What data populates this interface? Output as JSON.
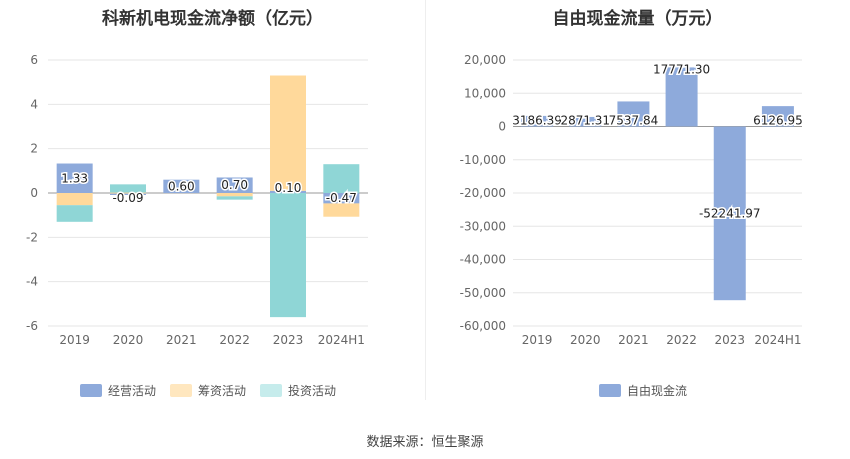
{
  "source_label": "数据来源：恒生聚源",
  "chart_data": [
    {
      "type": "bar",
      "stacked": true,
      "title": "科新机电现金流净额（亿元）",
      "categories": [
        "2019",
        "2020",
        "2021",
        "2022",
        "2023",
        "2024H1"
      ],
      "ylim": [
        -6,
        6
      ],
      "yticks": [
        -6,
        -4,
        -2,
        0,
        2,
        4,
        6
      ],
      "grid": true,
      "legend_position": "bottom",
      "series": [
        {
          "name": "经营活动",
          "color": "#8eaadb",
          "values": [
            1.33,
            -0.09,
            0.6,
            0.7,
            0.1,
            -0.47
          ]
        },
        {
          "name": "筹资活动",
          "color": "#ffd99b",
          "values": [
            -0.55,
            0.02,
            0.0,
            -0.15,
            5.2,
            -0.6
          ]
        },
        {
          "name": "投资活动",
          "color": "#8fd6d6",
          "values": [
            -0.75,
            0.37,
            0.0,
            -0.15,
            -5.6,
            1.3
          ]
        }
      ],
      "data_labels": [
        "1.33",
        "-0.09",
        "0.60",
        "0.70",
        "0.10",
        "-0.47"
      ]
    },
    {
      "type": "bar",
      "title": "自由现金流量（万元）",
      "categories": [
        "2019",
        "2020",
        "2021",
        "2022",
        "2023",
        "2024H1"
      ],
      "ylim": [
        -60000,
        20000
      ],
      "yticks": [
        -60000,
        -50000,
        -40000,
        -30000,
        -20000,
        -10000,
        0,
        10000,
        20000
      ],
      "ytick_labels": [
        "-60,000",
        "-50,000",
        "-40,000",
        "-30,000",
        "-20,000",
        "-10,000",
        "0",
        "10,000",
        "20,000"
      ],
      "grid": true,
      "legend_position": "bottom",
      "series": [
        {
          "name": "自由现金流",
          "color": "#8eaadb",
          "values": [
            3186.39,
            2871.31,
            7537.84,
            17771.3,
            -52241.97,
            6126.95
          ]
        }
      ],
      "data_labels": [
        "3186.39",
        "2871.31",
        "7537.84",
        "17771.30",
        "-52241.97",
        "6126.95"
      ]
    }
  ]
}
